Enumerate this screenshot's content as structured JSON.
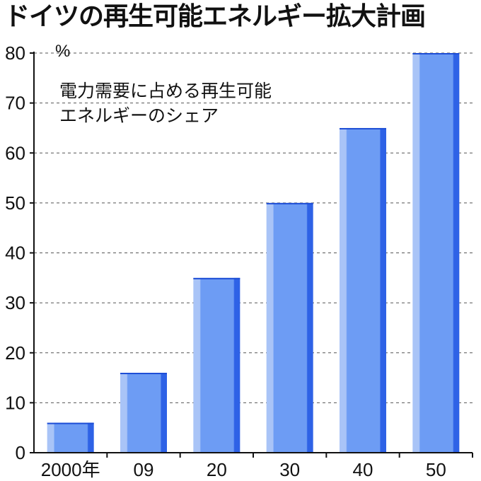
{
  "title": "ドイツの再生可能エネルギー拡大計画",
  "chart_data": {
    "type": "bar",
    "title": "ドイツの再生可能エネルギー拡大計画",
    "unit": "%",
    "note_lines": [
      "電力需要に占める再生可能",
      "エネルギーのシェア"
    ],
    "categories": [
      "2000年",
      "09",
      "20",
      "30",
      "40",
      "50"
    ],
    "values": [
      6,
      16,
      35,
      50,
      65,
      80
    ],
    "ylim": [
      0,
      80
    ],
    "yticks": [
      0,
      10,
      20,
      30,
      40,
      50,
      60,
      70,
      80
    ],
    "grid": true,
    "colors": {
      "bar_left": "#a9c4f7",
      "bar_main": "#6d9cf4",
      "bar_right": "#2e62e6",
      "bar_top": "#1f4fd6",
      "grid": "#555555",
      "axis": "#111111"
    }
  }
}
